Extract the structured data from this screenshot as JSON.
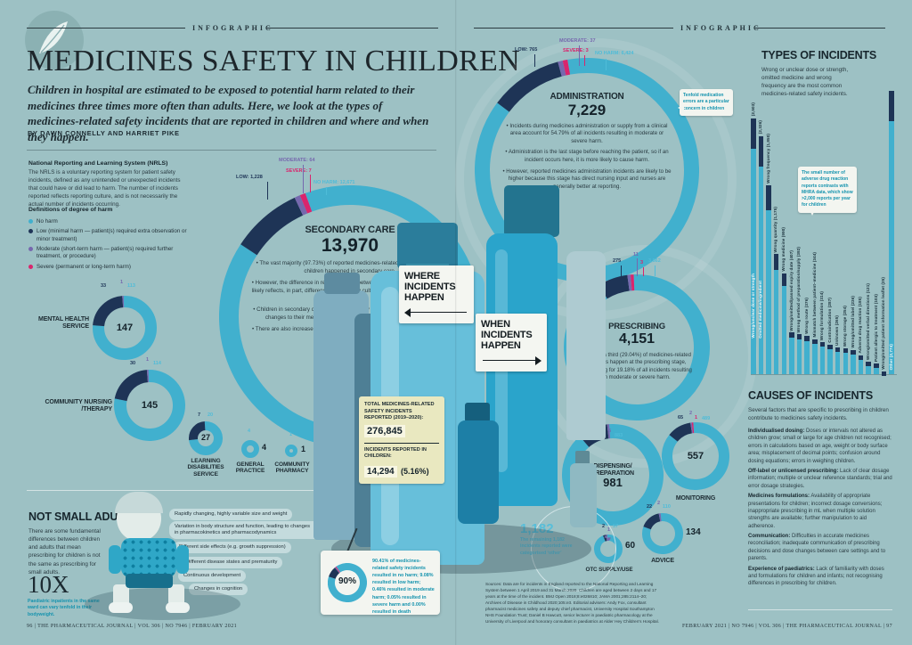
{
  "colors": {
    "background": "#9dc1c4",
    "no_harm": "#41b0ce",
    "low": "#1e3456",
    "moderate": "#7668ae",
    "severe": "#d9256d",
    "no_harm_label": "#4fbcd8",
    "accent_teal": "#1593ae",
    "ink": "#1c2a31"
  },
  "header": {
    "label_left": "INFOGRAPHIC",
    "label_right": "INFOGRAPHIC"
  },
  "title_block": {
    "title": "MEDICINES SAFETY IN CHILDREN",
    "intro": "Children in hospital are estimated to be exposed to potential harm related to their medicines three times more often than adults. Here, we look at the types of medicines-related safety incidents that are reported in children and where and when they happen.",
    "byline": "BY DAWN CONNELLY AND HARRIET PIKE"
  },
  "nrls": {
    "heading": "National Reporting and Learning System (NRLS)",
    "body": "The NRLS is a voluntary reporting system for patient safety incidents, defined as any unintended or unexpected incidents that could have or did lead to harm. The number of incidents reported reflects reporting culture, and is not necessarily the actual number of incidents occurring."
  },
  "legend": {
    "heading": "Definitions of degree of harm",
    "items": [
      {
        "key": "no_harm",
        "label": "No harm"
      },
      {
        "key": "low",
        "label": "Low (minimal harm — patient(s) required extra observation or minor treatment)"
      },
      {
        "key": "moderate",
        "label": "Moderate (short-term harm — patient(s) required further treatment, or procedure)"
      },
      {
        "key": "severe",
        "label": "Severe (permanent or long-term harm)"
      }
    ]
  },
  "signs": {
    "where": "WHERE INCIDENTS HAPPEN",
    "when": "WHEN INCIDENTS HAPPEN"
  },
  "totals_box": {
    "line1": "TOTAL MEDICINES-RELATED SAFETY INCIDENTS REPORTED (2019–2020):",
    "value1": "276,845",
    "line2": "INCIDENTS REPORTED IN CHILDREN:",
    "value2": "14,294",
    "pct2": "(5.16%)"
  },
  "ninety_box": {
    "text": "90.41% of medicines-related safety incidents resulted in no harm; 9.08% resulted in low harm; 0.46% resulted in moderate harm; 0.05% resulted in severe harm and 0.00% resulted in death"
  },
  "other_note": {
    "value": "1,182",
    "caption": "The remaining 1,182 incidents reported were categorised ‘other’"
  },
  "callouts": {
    "tenfold": "Tenfold medication errors are a particular concern in children",
    "mhra": "The small number of adverse drug reaction reports contrasts with MHRA data, which show >2,000 reports per year for children"
  },
  "types_section": {
    "heading": "TYPES OF INCIDENTS",
    "intro": "Wrong or unclear dose or strength, omitted medicine and wrong frequency are the most common medicines-related safety incidents."
  },
  "causes_section": {
    "heading": "CAUSES OF INCIDENTS",
    "intro": "Several factors that are specific to prescribing in children contribute to medicines safety incidents.",
    "items": [
      {
        "term": "Individualised dosing:",
        "desc": "Doses or intervals not altered as children grow; small or large for age children not recognised; errors in calculations based on age, weight or body surface area; misplacement of decimal points; confusion around dosing equations; errors in weighing children."
      },
      {
        "term": "Off-label or unlicensed prescribing:",
        "desc": "Lack of clear dosage information; multiple or unclear reference standards; trial and error dosage strategies."
      },
      {
        "term": "Medicines formulations:",
        "desc": "Availability of appropriate presentations for children; incorrect dosage conversions; inappropriate prescribing in mL when multiple solution strengths are available; further manipulation to aid adherence."
      },
      {
        "term": "Communication:",
        "desc": "Difficulties in accurate medicines reconciliation; inadequate communication of prescribing decisions and dose changes between care settings and to parents."
      },
      {
        "term": "Experience of paediatrics:",
        "desc": "Lack of familiarity with doses and formulations for children and infants; not recognising differences in prescribing for children."
      }
    ]
  },
  "not_small_adults": {
    "heading": "NOT SMALL ADULTS",
    "body": "There are some fundamental differences between children and adults that mean prescribing for children is not the same as prescribing for small adults.",
    "stat": "10X",
    "stat_caption": "Paediatric inpatients in the same ward can vary tenfold in their bodyweight.",
    "pills": [
      "Rapidly changing, highly variable size and weight",
      "Variation in body structure and function, leading to changes in pharmacokinetics and pharmacodynamics",
      "Different side effects (e.g. growth suppression)",
      "Different disease states and prematurity",
      "Continuous development",
      "Changes in cognition"
    ]
  },
  "sources": "Sources: Data are for incidents in England reported to the National Reporting and Learning System between 1 April 2019 and 31 March 2020. Children are aged between 2 days and 17 years at the time of the incident. BMJ Open 2018;8:e026810; JAMA 2001;285:2114–20; Archives of Disease in Childhood 2020;105:e3. Editorial advisers: Andy Fox, consultant pharmacist medicines safety and deputy chief pharmacist, University Hospital Southampton NHS Foundation Trust; Daniel B Hawcutt, senior lecturer in paediatric pharmacology at the University of Liverpool and honorary consultant in paediatrics at Alder Hey Children's Hospital.",
  "footer": {
    "left": "96  |  THE PHARMACEUTICAL JOURNAL  |  VOL 306  |  NO 7946  |  FEBRUARY 2021",
    "right": "FEBRUARY 2021  |  NO 7946  |  VOL 306  |  THE PHARMACEUTICAL JOURNAL  |  97"
  },
  "chart_data": [
    {
      "id": "secondary_care",
      "type": "donut",
      "title": "SECONDARY CARE",
      "total": 13970,
      "total_label": "13,970",
      "segments": {
        "no_harm": 12671,
        "low": 1228,
        "moderate": 64,
        "severe": 7
      },
      "labels": [
        {
          "key": "low",
          "text": "LOW: 1,228"
        },
        {
          "key": "moderate",
          "text": "MODERATE: 64"
        },
        {
          "key": "severe",
          "text": "SEVERE: 7"
        },
        {
          "key": "no_harm",
          "text": "NO HARM: 12,671"
        }
      ],
      "bullets": [
        "The vast majority (97.73%) of reported medicines-related safety incidents in children happened in secondary care.",
        "However, the difference in reporting rates between secondary and primary care likely reflects, in part, differences in reporting culture rather than in the number of incidents.",
        "Children in secondary care are usually acutely unwell and so experience rapid changes to their medicines, which may make it a higher-risk situation.",
        "There are also increased opportunities for reporting in secondary care because all doses are supervised."
      ]
    },
    {
      "id": "administration",
      "type": "donut",
      "title": "ADMINISTRATION",
      "total": 7229,
      "total_label": "7,229",
      "segments": {
        "no_harm": 6424,
        "low": 765,
        "moderate": 37,
        "severe": 3
      },
      "labels": [
        {
          "key": "low",
          "text": "LOW: 765"
        },
        {
          "key": "moderate",
          "text": "MODERATE: 37"
        },
        {
          "key": "severe",
          "text": "SEVERE: 3"
        },
        {
          "key": "no_harm",
          "text": "NO HARM: 6,424"
        }
      ],
      "bullets": [
        "Incidents during medicines administration or supply from a clinical area account for 54.79% of all incidents resulting in moderate or severe harm.",
        "Administration is the last stage before reaching the patient, so if an incident occurs here, it is more likely to cause harm.",
        "However, reported medicines administration incidents are likely to be higher because this stage has direct nursing input and nurses are generally better at reporting."
      ]
    },
    {
      "id": "prescribing",
      "type": "donut",
      "title": "PRESCRIBING",
      "total": 4151,
      "total_label": "4,151",
      "segments": {
        "no_harm": 3862,
        "low": 275,
        "moderate": 11,
        "severe": 3
      },
      "labels": [
        {
          "key": "low",
          "text": "275"
        },
        {
          "key": "moderate",
          "text": "11"
        },
        {
          "key": "severe",
          "text": "3"
        },
        {
          "key": "no_harm",
          "text": "3,862"
        }
      ],
      "bullets": [
        "Almost a third (29.04%) of medicines-related incidents happen at the prescribing stage, accounting for 19.18% of all incidents resulting in moderate or severe harm."
      ]
    },
    {
      "id": "mental_health_service",
      "type": "donut",
      "title": "MENTAL HEALTH SERVICE",
      "total": 147,
      "total_label": "147",
      "segments": {
        "no_harm": 113,
        "low": 33,
        "moderate": 1
      },
      "labels": [
        {
          "key": "low",
          "text": "33"
        },
        {
          "key": "moderate",
          "text": "1"
        },
        {
          "key": "no_harm",
          "text": "113"
        }
      ]
    },
    {
      "id": "community_nursing_therapy",
      "type": "donut",
      "title": "COMMUNITY NURSING /THERAPY",
      "total": 145,
      "total_label": "145",
      "segments": {
        "no_harm": 114,
        "low": 30,
        "moderate": 1
      },
      "labels": [
        {
          "key": "low",
          "text": "30"
        },
        {
          "key": "moderate",
          "text": "1"
        },
        {
          "key": "no_harm",
          "text": "114"
        }
      ]
    },
    {
      "id": "learning_disabilities_service",
      "type": "donut",
      "title": "LEARNING DISABILITIES SERVICE",
      "total": 27,
      "total_label": "27",
      "segments": {
        "no_harm": 20,
        "low": 7
      },
      "labels": [
        {
          "key": "low",
          "text": "7"
        },
        {
          "key": "no_harm",
          "text": "20"
        }
      ]
    },
    {
      "id": "general_practice",
      "type": "donut",
      "title": "GENERAL PRACTICE",
      "total": 4,
      "total_label": "4",
      "segments": {
        "no_harm": 4
      },
      "labels": [
        {
          "key": "no_harm",
          "text": "4"
        }
      ]
    },
    {
      "id": "community_pharmacy",
      "type": "donut",
      "title": "COMMUNITY PHARMACY",
      "total": 1,
      "total_label": "1",
      "segments": {
        "no_harm": 1
      },
      "labels": [
        {
          "key": "no_harm",
          "text": "1"
        }
      ]
    },
    {
      "id": "dispensing_preparation",
      "type": "donut",
      "title": "DISPENSING/ PREPARATION",
      "total": 981,
      "total_label": "981",
      "segments": {
        "no_harm": 883,
        "low": 93,
        "moderate": 5
      },
      "labels": [
        {
          "key": "low",
          "text": "93"
        },
        {
          "key": "moderate",
          "text": "5"
        },
        {
          "key": "no_harm",
          "text": "883"
        }
      ]
    },
    {
      "id": "monitoring",
      "type": "donut",
      "title": "MONITORING",
      "total": 557,
      "total_label": "557",
      "segments": {
        "no_harm": 489,
        "low": 65,
        "moderate": 2,
        "severe": 1
      },
      "labels": [
        {
          "key": "low",
          "text": "65"
        },
        {
          "key": "moderate",
          "text": "2"
        },
        {
          "key": "severe",
          "text": "1"
        },
        {
          "key": "no_harm",
          "text": "489"
        }
      ]
    },
    {
      "id": "advice",
      "type": "donut",
      "title": "ADVICE",
      "total": 134,
      "total_label": "134",
      "segments": {
        "no_harm": 110,
        "low": 22,
        "moderate": 2
      },
      "labels": [
        {
          "key": "low",
          "text": "22"
        },
        {
          "key": "moderate",
          "text": "2"
        },
        {
          "key": "no_harm",
          "text": "110"
        }
      ]
    },
    {
      "id": "otc_supply_use",
      "type": "donut",
      "title": "OTC SUPPLY/USE",
      "total": 60,
      "total_label": "60",
      "segments": {
        "no_harm": 57,
        "low": 2,
        "moderate": 1
      },
      "labels": [
        {
          "key": "low",
          "text": "2"
        },
        {
          "key": "moderate",
          "text": "1"
        },
        {
          "key": "no_harm",
          "text": "57"
        }
      ]
    },
    {
      "id": "overall_outcomes",
      "type": "donut",
      "title": "Overall outcome of reported incidents",
      "total": 100,
      "total_label": "90%",
      "segments": {
        "no_harm": 90.41,
        "low": 9.08,
        "moderate": 0.46,
        "severe": 0.05
      },
      "labels": []
    },
    {
      "id": "types_of_incidents",
      "type": "bar",
      "title": "TYPES OF INCIDENTS",
      "ylim": [
        0,
        2800
      ],
      "bars": [
        {
          "label": "Wrong/unclear dose or strength",
          "value": 2503,
          "display": "2,503"
        },
        {
          "label": "Omitted medicine/ingredient",
          "value": 2326,
          "display": "2,326"
        },
        {
          "label": "Wrong frequency",
          "value": 1850,
          "display": "1,850"
        },
        {
          "label": "Wrong quantity",
          "value": 1175,
          "display": "1,175"
        },
        {
          "label": "Wrong medicine",
          "value": 990,
          "display": "990"
        },
        {
          "label": "Wrong/omitted/passed expiry date",
          "value": 407,
          "display": "407"
        },
        {
          "label": "Wrong method of preparation/supply",
          "value": 392,
          "display": "392"
        },
        {
          "label": "Wrong route",
          "value": 376,
          "display": "376"
        },
        {
          "label": "Mismatch between patient–medicine",
          "value": 344,
          "display": "344"
        },
        {
          "label": "Wrong formulation",
          "value": 314,
          "display": "314"
        },
        {
          "label": "Contraindication",
          "value": 287,
          "display": "287"
        },
        {
          "label": "Unknown",
          "value": 265,
          "display": "265"
        },
        {
          "label": "Wrong storage",
          "value": 254,
          "display": "254"
        },
        {
          "label": "Wrong/omitted label",
          "value": 236,
          "display": "236"
        },
        {
          "label": "Adverse drug reaction",
          "value": 185,
          "display": "185"
        },
        {
          "label": "Wrong/omitted verbal directions",
          "value": 121,
          "display": "121"
        },
        {
          "label": "Patient allergic to treatment",
          "value": 103,
          "display": "103"
        },
        {
          "label": "Wrong/omitted patient information leaflet",
          "value": 25,
          "display": "25"
        },
        {
          "label": "Other",
          "value": 2774,
          "display": "2,774"
        }
      ]
    }
  ]
}
